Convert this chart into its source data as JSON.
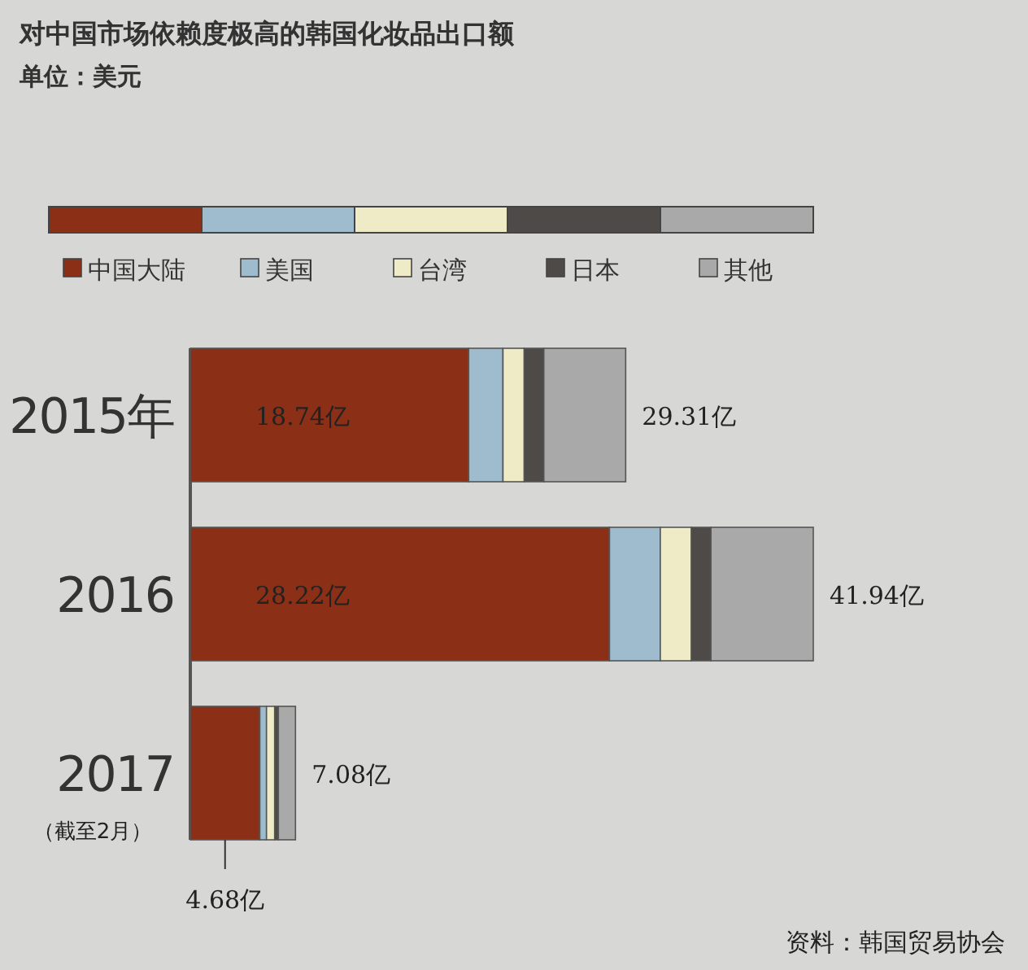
{
  "chart_data": {
    "type": "bar",
    "orientation": "horizontal",
    "stacked": true,
    "legend": "top",
    "title": "对中国市场依赖度极高的韩国化妆品出口额",
    "subtitle": "单位：美元",
    "categories": [
      "2015年",
      "2016",
      "2017"
    ],
    "series": [
      {
        "name": "中国大陆",
        "color": "#8c2f17",
        "values": [
          18.74,
          28.22,
          4.68
        ],
        "value_labels": [
          "18.74亿",
          "28.22亿",
          "4.68亿"
        ]
      },
      {
        "name": "美国",
        "color": "#9fbccf",
        "values": [
          2.31,
          3.42,
          0.45
        ]
      },
      {
        "name": "台湾",
        "color": "#efebc6",
        "values": [
          1.43,
          2.09,
          0.55
        ]
      },
      {
        "name": "日本",
        "color": "#4e4a47",
        "values": [
          1.32,
          1.32,
          0.25
        ]
      },
      {
        "name": "其他",
        "color": "#a9a9a9",
        "values": [
          5.51,
          6.89,
          1.15
        ]
      }
    ],
    "totals": [
      "29.31亿",
      "41.94亿",
      "7.08亿"
    ],
    "annotations": [
      "（截至2月）",
      "资料：韩国贸易协会"
    ]
  }
}
